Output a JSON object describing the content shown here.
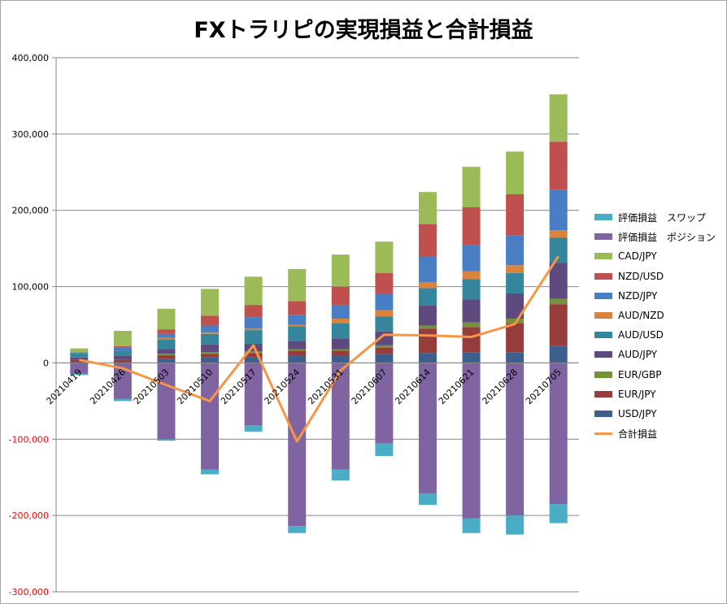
{
  "chart_data": {
    "type": "bar",
    "title": "FXトラリピの実現損益と合計損益",
    "xlabel": "",
    "ylabel": "",
    "ylim": [
      -300000,
      400000
    ],
    "yticks": [
      {
        "value": 400000,
        "label": "400,000"
      },
      {
        "value": 300000,
        "label": "300,000"
      },
      {
        "value": 200000,
        "label": "200,000"
      },
      {
        "value": 100000,
        "label": "100,000"
      },
      {
        "value": 0,
        "label": "0"
      },
      {
        "value": -100000,
        "label": "-100,000"
      },
      {
        "value": -200000,
        "label": "-200,000"
      },
      {
        "value": -300000,
        "label": "-300,000"
      }
    ],
    "grid": true,
    "legend_position": "right",
    "categories": [
      "20210419",
      "20210426",
      "20210503",
      "20210510",
      "20210517",
      "20210524",
      "20210531",
      "20210607",
      "20210614",
      "20210621",
      "20210628",
      "20210705"
    ],
    "series": [
      {
        "name": "USD/JPY",
        "kind": "bar",
        "color": "#3d5f8e",
        "values": [
          0,
          0,
          5000,
          7000,
          7000,
          10000,
          10000,
          12000,
          13000,
          14000,
          14000,
          22000
        ]
      },
      {
        "name": "EUR/JPY",
        "kind": "bar",
        "color": "#963c3a",
        "values": [
          4000,
          4000,
          5000,
          5000,
          6000,
          6000,
          6000,
          8000,
          32000,
          33000,
          38000,
          55000
        ]
      },
      {
        "name": "EUR/GBP",
        "kind": "bar",
        "color": "#739339",
        "values": [
          0,
          0,
          2000,
          2000,
          2000,
          2000,
          2000,
          3000,
          4000,
          6000,
          6000,
          7000
        ]
      },
      {
        "name": "AUD/JPY",
        "kind": "bar",
        "color": "#5f4a80",
        "values": [
          3000,
          5000,
          6000,
          10000,
          10000,
          11000,
          14000,
          18000,
          26000,
          30000,
          33000,
          47000
        ]
      },
      {
        "name": "AUD/USD",
        "kind": "bar",
        "color": "#35869c",
        "values": [
          6000,
          7000,
          13000,
          14000,
          18000,
          19000,
          20000,
          20000,
          23000,
          27000,
          27000,
          33000
        ]
      },
      {
        "name": "AUD/NZD",
        "kind": "bar",
        "color": "#d9833c",
        "values": [
          0,
          0,
          2000,
          2000,
          2000,
          2000,
          6000,
          8000,
          8000,
          10000,
          10000,
          10000
        ]
      },
      {
        "name": "NZD/JPY",
        "kind": "bar",
        "color": "#4a7ec4",
        "values": [
          1000,
          4000,
          5000,
          9000,
          15000,
          13000,
          18000,
          22000,
          33000,
          34000,
          39000,
          53000
        ]
      },
      {
        "name": "NZD/USD",
        "kind": "bar",
        "color": "#c0504d",
        "values": [
          0,
          2000,
          6000,
          13000,
          16000,
          18000,
          24000,
          27000,
          43000,
          50000,
          54000,
          63000
        ]
      },
      {
        "name": "CAD/JPY",
        "kind": "bar",
        "color": "#9bbb59",
        "values": [
          5000,
          20000,
          27000,
          35000,
          37000,
          42000,
          42000,
          41000,
          42000,
          53000,
          56000,
          62000
        ]
      },
      {
        "name": "評価損益　ポジション",
        "kind": "bar",
        "color": "#8064a2",
        "values": [
          -14000,
          -47000,
          -100000,
          -140000,
          -82000,
          -214000,
          -140000,
          -105000,
          -171000,
          -204000,
          -200000,
          -185000
        ]
      },
      {
        "name": "評価損益　スワップ",
        "kind": "bar",
        "color": "#4bacc6",
        "values": [
          -2000,
          -3000,
          -2000,
          -6000,
          -8000,
          -9000,
          -14000,
          -17000,
          -15000,
          -19000,
          -25000,
          -25000
        ]
      },
      {
        "name": "合計損益",
        "kind": "line",
        "color": "#f79646",
        "values": [
          4000,
          -7000,
          -29000,
          -50000,
          23000,
          -103000,
          -10000,
          37000,
          36000,
          34000,
          51000,
          140000
        ]
      }
    ]
  },
  "legend_order": [
    "評価損益　スワップ",
    "評価損益　ポジション",
    "CAD/JPY",
    "NZD/USD",
    "NZD/JPY",
    "AUD/NZD",
    "AUD/USD",
    "AUD/JPY",
    "EUR/GBP",
    "EUR/JPY",
    "USD/JPY",
    "合計損益"
  ],
  "colors": {
    "negative_tick": "#ff0000",
    "axis_text": "#000000",
    "grid": "#868686",
    "axis": "#868686"
  }
}
